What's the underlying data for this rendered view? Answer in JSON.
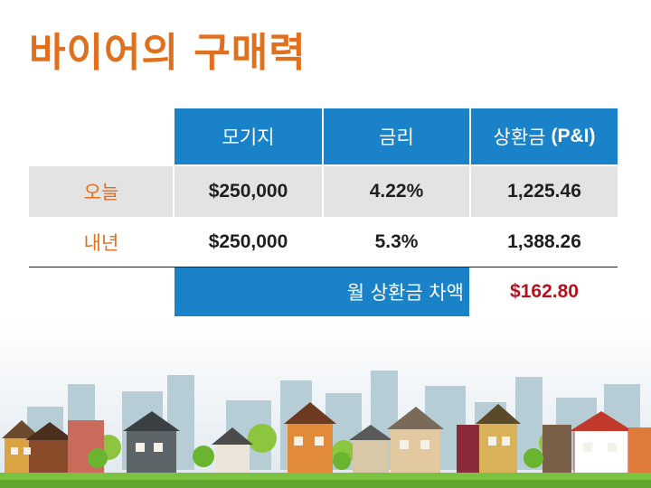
{
  "title": "바이어의 구매력",
  "table": {
    "headers": [
      "모기지",
      "금리",
      "상환금"
    ],
    "header_suffix": "(P&I)",
    "rows": [
      {
        "label": "오늘",
        "mortgage": "$250,000",
        "rate": "4.22%",
        "payment": "1,225.46"
      },
      {
        "label": "내년",
        "mortgage": "$250,000",
        "rate": "5.3%",
        "payment": "1,388.26"
      }
    ],
    "diff_label": "월 상환금 차액",
    "diff_value": "$162.80"
  },
  "colors": {
    "accent": "#1a82c8",
    "title": "#e0701e",
    "diff": "#b3121e",
    "row_shade": "#e3e3e3"
  }
}
